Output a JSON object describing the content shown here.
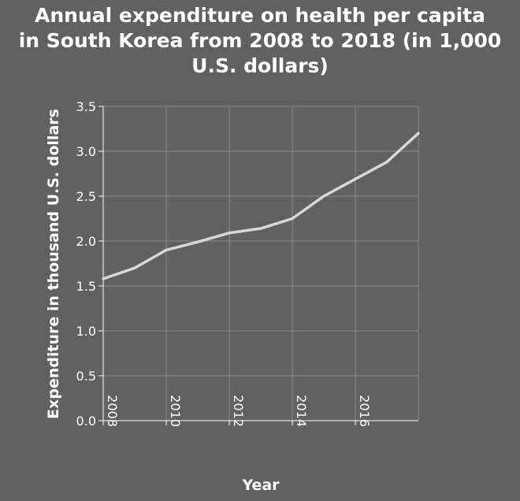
{
  "chart_data": {
    "type": "line",
    "title_lines": [
      "Annual expenditure on health per capita",
      "in South Korea from 2008 to 2018 (in 1,000",
      "U.S. dollars)"
    ],
    "xlabel": "Year",
    "ylabel": "Expenditure in thousand U.S. dollars",
    "x": [
      2008,
      2009,
      2010,
      2011,
      2012,
      2013,
      2014,
      2015,
      2016,
      2017,
      2018
    ],
    "series": [
      {
        "values": [
          1.58,
          1.7,
          1.9,
          1.99,
          2.09,
          2.14,
          2.25,
          2.5,
          2.69,
          2.88,
          3.2
        ]
      }
    ],
    "xlim": [
      2008,
      2018
    ],
    "ylim": [
      0,
      3.5
    ],
    "x_ticks": [
      "2008",
      "2010",
      "2012",
      "2014",
      "2016"
    ],
    "y_ticks": [
      "0.0",
      "0.5",
      "1.0",
      "1.5",
      "2.0",
      "2.5",
      "3.0",
      "3.5"
    ],
    "grid": true,
    "colors": {
      "background": "#616161",
      "line": "#d8d8d8",
      "grid": "#8a8a8a",
      "text": "#ffffff"
    }
  }
}
